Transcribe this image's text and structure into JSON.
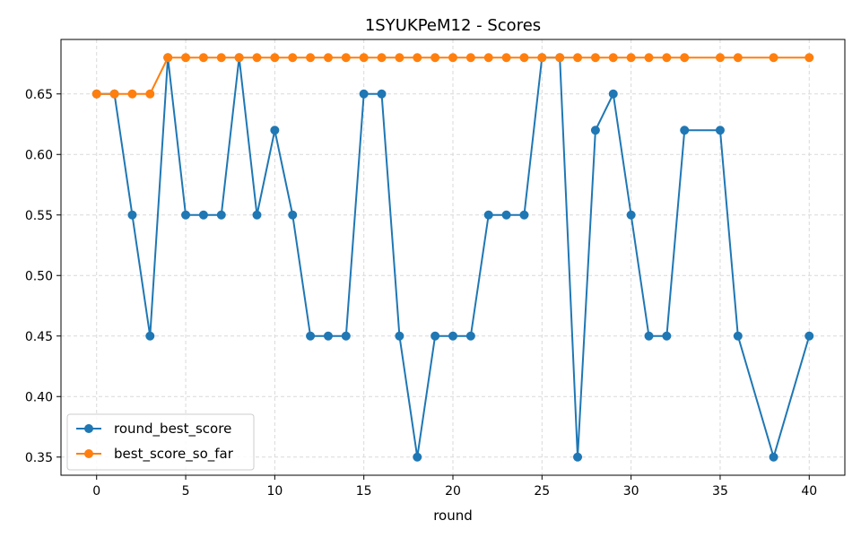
{
  "chart_data": {
    "type": "line",
    "title": "1SYUKPeM12 - Scores",
    "xlabel": "round",
    "ylabel": "",
    "xlim": [
      -2,
      42
    ],
    "ylim": [
      0.335,
      0.695
    ],
    "xticks": [
      0,
      5,
      10,
      15,
      20,
      25,
      30,
      35,
      40
    ],
    "xtick_labels": [
      "0",
      "5",
      "10",
      "15",
      "20",
      "25",
      "30",
      "35",
      "40"
    ],
    "yticks": [
      0.35,
      0.4,
      0.45,
      0.5,
      0.55,
      0.6,
      0.65
    ],
    "ytick_labels": [
      "0.35",
      "0.40",
      "0.45",
      "0.50",
      "0.55",
      "0.60",
      "0.65"
    ],
    "grid": true,
    "legend_position": "bottom-left",
    "series": [
      {
        "name": "round_best_score",
        "color": "#1f77b4",
        "x": [
          0,
          1,
          2,
          3,
          4,
          5,
          6,
          7,
          8,
          9,
          10,
          11,
          12,
          13,
          14,
          15,
          16,
          17,
          18,
          19,
          20,
          21,
          22,
          23,
          24,
          25,
          26,
          27,
          28,
          29,
          30,
          31,
          32,
          33,
          35,
          36,
          38,
          40
        ],
        "y": [
          0.65,
          0.65,
          0.55,
          0.45,
          0.68,
          0.55,
          0.55,
          0.55,
          0.68,
          0.55,
          0.62,
          0.55,
          0.45,
          0.45,
          0.45,
          0.65,
          0.65,
          0.45,
          0.35,
          0.45,
          0.45,
          0.45,
          0.55,
          0.55,
          0.55,
          0.68,
          0.68,
          0.35,
          0.62,
          0.65,
          0.55,
          0.45,
          0.45,
          0.62,
          0.62,
          0.45,
          0.35,
          0.45
        ]
      },
      {
        "name": "best_score_so_far",
        "color": "#ff7f0e",
        "x": [
          0,
          1,
          2,
          3,
          4,
          5,
          6,
          7,
          8,
          9,
          10,
          11,
          12,
          13,
          14,
          15,
          16,
          17,
          18,
          19,
          20,
          21,
          22,
          23,
          24,
          25,
          26,
          27,
          28,
          29,
          30,
          31,
          32,
          33,
          35,
          36,
          38,
          40
        ],
        "y": [
          0.65,
          0.65,
          0.65,
          0.65,
          0.68,
          0.68,
          0.68,
          0.68,
          0.68,
          0.68,
          0.68,
          0.68,
          0.68,
          0.68,
          0.68,
          0.68,
          0.68,
          0.68,
          0.68,
          0.68,
          0.68,
          0.68,
          0.68,
          0.68,
          0.68,
          0.68,
          0.68,
          0.68,
          0.68,
          0.68,
          0.68,
          0.68,
          0.68,
          0.68,
          0.68,
          0.68,
          0.68,
          0.68
        ]
      }
    ]
  }
}
